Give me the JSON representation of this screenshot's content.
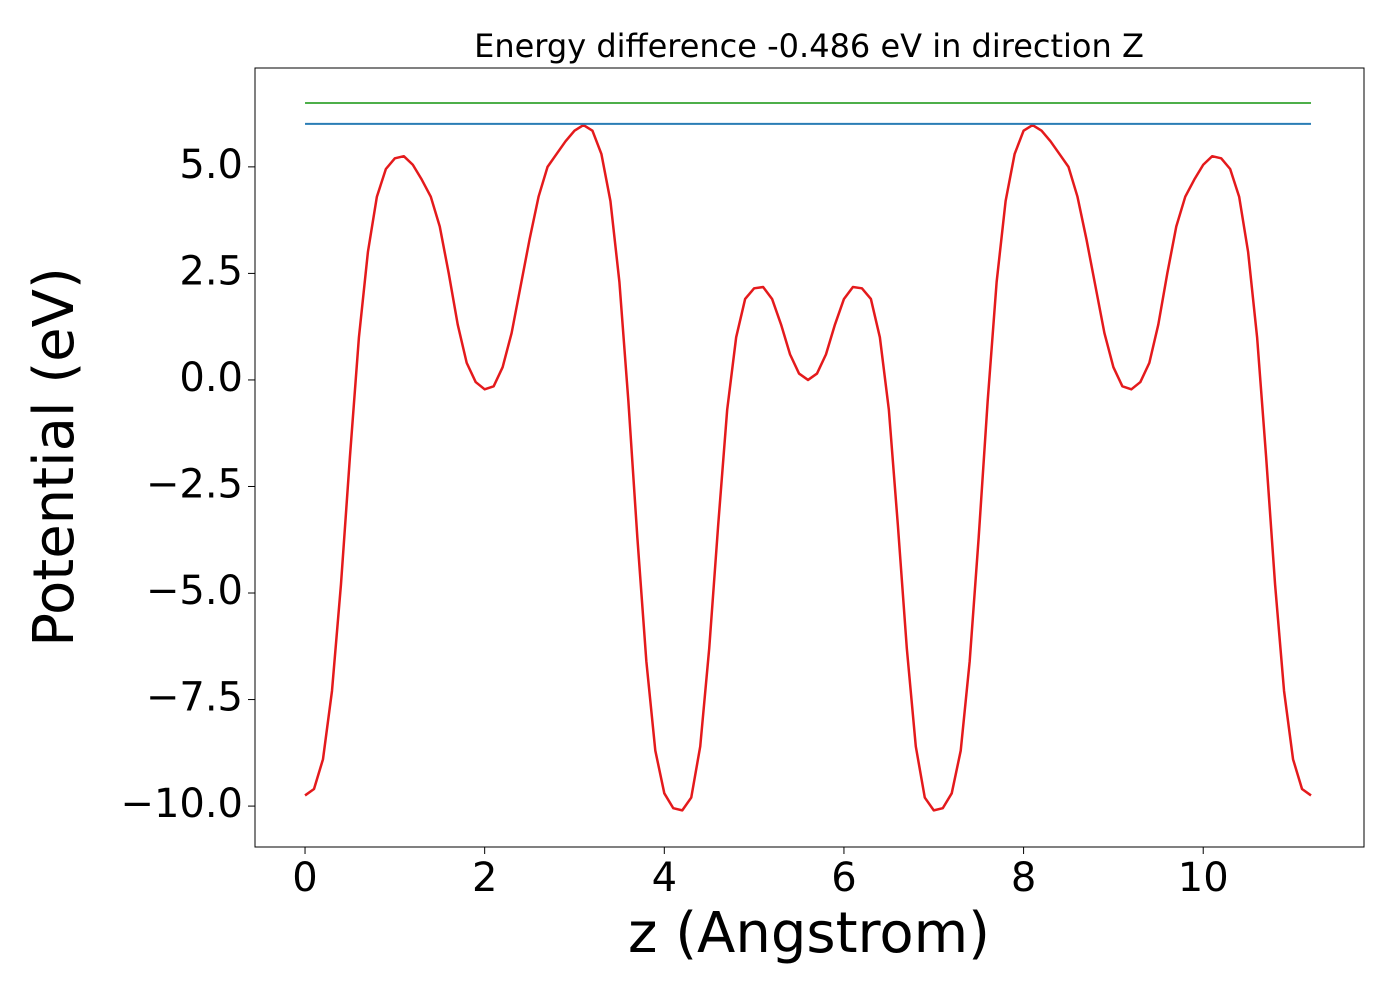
{
  "chart_data": {
    "type": "line",
    "title": "Energy difference -0.486 eV in direction Z",
    "x_label": "z (Angstrom)",
    "y_label": "Potential (eV)",
    "xlim": [
      -0.557,
      11.79
    ],
    "ylim": [
      -10.96,
      7.32
    ],
    "xticks": [
      0,
      2,
      4,
      6,
      8,
      10
    ],
    "yticks": [
      {
        "value": -10,
        "label": "−10.0"
      },
      {
        "value": -7.5,
        "label": "−7.5"
      },
      {
        "value": -5,
        "label": "−5.0"
      },
      {
        "value": -2.5,
        "label": "−2.5"
      },
      {
        "value": 0,
        "label": "0.0"
      },
      2.5,
      {
        "value": 5,
        "label": "5.0"
      }
    ],
    "grid": false,
    "series": [
      {
        "color": "#e41a1c",
        "x": [
          0,
          0.1,
          0.2,
          0.3,
          0.4,
          0.5,
          0.6,
          0.7,
          0.8,
          0.9,
          1.0,
          1.1,
          1.2,
          1.3,
          1.4,
          1.5,
          1.6,
          1.7,
          1.8,
          1.9,
          2.0,
          2.1,
          2.2,
          2.3,
          2.4,
          2.5,
          2.6,
          2.7,
          2.8,
          2.9,
          3.0,
          3.1,
          3.2,
          3.3,
          3.4,
          3.5,
          3.6,
          3.7,
          3.8,
          3.9,
          4.0,
          4.1,
          4.2,
          4.3,
          4.4,
          4.5,
          4.6,
          4.7,
          4.8,
          4.9,
          5.0,
          5.1,
          5.2,
          5.3,
          5.4,
          5.5,
          5.6,
          5.7,
          5.8,
          5.9,
          6.0,
          6.1,
          6.2,
          6.3,
          6.4,
          6.5,
          6.6,
          6.7,
          6.8,
          6.9,
          7.0,
          7.1,
          7.2,
          7.3,
          7.4,
          7.5,
          7.6,
          7.7,
          7.8,
          7.9,
          8.0,
          8.1,
          8.2,
          8.3,
          8.4,
          8.5,
          8.6,
          8.7,
          8.8,
          8.9,
          9.0,
          9.1,
          9.2,
          9.3,
          9.4,
          9.5,
          9.6,
          9.7,
          9.8,
          9.9,
          10.0,
          10.1,
          10.2,
          10.3,
          10.4,
          10.5,
          10.6,
          10.7,
          10.8,
          10.9,
          11.0,
          11.1,
          11.2
        ],
        "values": [
          -9.75,
          -9.6,
          -8.9,
          -7.3,
          -4.8,
          -1.8,
          1.0,
          3.0,
          4.3,
          4.95,
          5.2,
          5.25,
          5.05,
          4.7,
          4.3,
          3.6,
          2.5,
          1.3,
          0.4,
          -0.05,
          -0.22,
          -0.15,
          0.3,
          1.1,
          2.2,
          3.3,
          4.3,
          5.0,
          5.3,
          5.6,
          5.85,
          5.98,
          5.85,
          5.3,
          4.2,
          2.3,
          -0.5,
          -3.7,
          -6.6,
          -8.7,
          -9.7,
          -10.05,
          -10.1,
          -9.8,
          -8.6,
          -6.3,
          -3.4,
          -0.7,
          1.0,
          1.9,
          2.15,
          2.18,
          1.9,
          1.3,
          0.6,
          0.15,
          0.0,
          0.15,
          0.6,
          1.3,
          1.9,
          2.18,
          2.15,
          1.9,
          1.0,
          -0.7,
          -3.4,
          -6.3,
          -8.6,
          -9.8,
          -10.1,
          -10.05,
          -9.7,
          -8.7,
          -6.6,
          -3.7,
          -0.5,
          2.3,
          4.2,
          5.3,
          5.85,
          5.98,
          5.85,
          5.6,
          5.3,
          5.0,
          4.3,
          3.3,
          2.2,
          1.1,
          0.3,
          -0.15,
          -0.22,
          -0.05,
          0.4,
          1.3,
          2.5,
          3.6,
          4.3,
          4.7,
          5.05,
          5.25,
          5.2,
          4.95,
          4.3,
          3.0,
          1.0,
          -1.8,
          -4.8,
          -7.3,
          -8.9,
          -9.6,
          -9.75
        ]
      },
      {
        "color": "#2a7db5",
        "x": [
          0,
          11.2
        ],
        "values": [
          6.01,
          6.01
        ]
      },
      {
        "color": "#4daf4a",
        "x": [
          0,
          11.2
        ],
        "values": [
          6.5,
          6.5
        ]
      }
    ]
  }
}
